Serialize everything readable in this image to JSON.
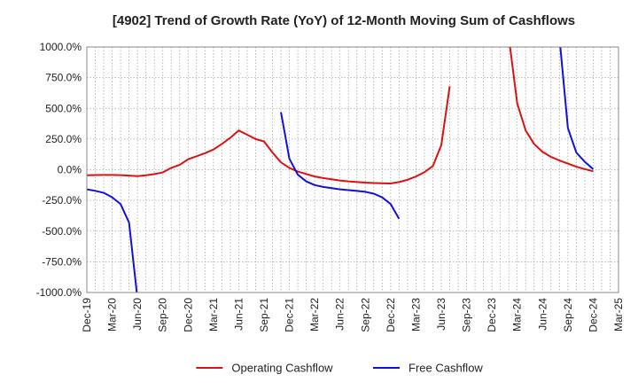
{
  "chart_data": {
    "type": "line",
    "title": "[4902]  Trend of Growth Rate (YoY) of 12-Month Moving Sum of Cashflows",
    "xlabel": "",
    "ylabel": "",
    "ylim": [
      -1000,
      1000
    ],
    "yticks": [
      1000,
      750,
      500,
      250,
      0,
      -250,
      -500,
      -750,
      -1000
    ],
    "ytick_labels": [
      "1000.0%",
      "750.0%",
      "500.0%",
      "250.0%",
      "0.0%",
      "-250.0%",
      "-500.0%",
      "-750.0%",
      "-1000.0%"
    ],
    "x_start": "Dec-19",
    "x_end": "Mar-25",
    "xtick_labels": [
      "Dec-19",
      "Mar-20",
      "Jun-20",
      "Sep-20",
      "Dec-20",
      "Mar-21",
      "Jun-21",
      "Sep-21",
      "Dec-21",
      "Mar-22",
      "Jun-22",
      "Sep-22",
      "Dec-22",
      "Mar-23",
      "Jun-23",
      "Sep-23",
      "Dec-23",
      "Mar-24",
      "Jun-24",
      "Sep-24",
      "Dec-24",
      "Mar-25"
    ],
    "grid": true,
    "legend_position": "bottom",
    "series": [
      {
        "name": "Operating Cashflow",
        "color": "#dd1111",
        "segments": [
          [
            [
              "Dec-19",
              -45
            ],
            [
              "Jan-20",
              -43
            ],
            [
              "Feb-20",
              -42
            ],
            [
              "Mar-20",
              -42
            ],
            [
              "Apr-20",
              -44
            ],
            [
              "May-20",
              -48
            ],
            [
              "Jun-20",
              -52
            ],
            [
              "Jul-20",
              -45
            ],
            [
              "Aug-20",
              -35
            ],
            [
              "Sep-20",
              -22
            ],
            [
              "Oct-20",
              15
            ],
            [
              "Nov-20",
              40
            ],
            [
              "Dec-20",
              85
            ],
            [
              "Jan-21",
              110
            ],
            [
              "Feb-21",
              135
            ],
            [
              "Mar-21",
              165
            ],
            [
              "Apr-21",
              210
            ],
            [
              "May-21",
              260
            ],
            [
              "Jun-21",
              320
            ],
            [
              "Jul-21",
              285
            ],
            [
              "Aug-21",
              250
            ],
            [
              "Sep-21",
              230
            ],
            [
              "Oct-21",
              140
            ],
            [
              "Nov-21",
              60
            ],
            [
              "Dec-21",
              15
            ],
            [
              "Jan-22",
              -15
            ],
            [
              "Feb-22",
              -35
            ],
            [
              "Mar-22",
              -55
            ],
            [
              "Apr-22",
              -68
            ],
            [
              "May-22",
              -78
            ],
            [
              "Jun-22",
              -88
            ],
            [
              "Jul-22",
              -95
            ],
            [
              "Aug-22",
              -100
            ],
            [
              "Sep-22",
              -105
            ],
            [
              "Oct-22",
              -108
            ],
            [
              "Nov-22",
              -110
            ],
            [
              "Dec-22",
              -112
            ],
            [
              "Jan-23",
              -100
            ],
            [
              "Feb-23",
              -82
            ],
            [
              "Mar-23",
              -55
            ],
            [
              "Apr-23",
              -20
            ],
            [
              "May-23",
              30
            ],
            [
              "Jun-23",
              200
            ],
            [
              "Jul-23",
              680
            ]
          ],
          [
            [
              "Feb-24",
              1080
            ],
            [
              "Mar-24",
              540
            ],
            [
              "Apr-24",
              320
            ],
            [
              "May-24",
              210
            ],
            [
              "Jun-24",
              145
            ],
            [
              "Jul-24",
              105
            ],
            [
              "Aug-24",
              75
            ],
            [
              "Sep-24",
              50
            ],
            [
              "Oct-24",
              25
            ],
            [
              "Nov-24",
              5
            ],
            [
              "Dec-24",
              -12
            ]
          ]
        ]
      },
      {
        "name": "Free Cashflow",
        "color": "#1111dd",
        "segments": [
          [
            [
              "Dec-19",
              -160
            ],
            [
              "Jan-20",
              -172
            ],
            [
              "Feb-20",
              -188
            ],
            [
              "Mar-20",
              -225
            ],
            [
              "Apr-20",
              -280
            ],
            [
              "May-20",
              -430
            ],
            [
              "Jun-20",
              -1050
            ]
          ],
          [
            [
              "Nov-21",
              470
            ],
            [
              "Dec-21",
              90
            ],
            [
              "Jan-22",
              -40
            ],
            [
              "Feb-22",
              -95
            ],
            [
              "Mar-22",
              -125
            ],
            [
              "Apr-22",
              -140
            ],
            [
              "May-22",
              -150
            ],
            [
              "Jun-22",
              -160
            ],
            [
              "Jul-22",
              -166
            ],
            [
              "Aug-22",
              -172
            ],
            [
              "Sep-22",
              -180
            ],
            [
              "Oct-22",
              -195
            ],
            [
              "Nov-22",
              -225
            ],
            [
              "Dec-22",
              -280
            ],
            [
              "Jan-23",
              -400
            ]
          ],
          [
            [
              "Aug-24",
              1080
            ],
            [
              "Sep-24",
              340
            ],
            [
              "Oct-24",
              140
            ],
            [
              "Nov-24",
              65
            ],
            [
              "Dec-24",
              5
            ]
          ]
        ]
      }
    ]
  }
}
